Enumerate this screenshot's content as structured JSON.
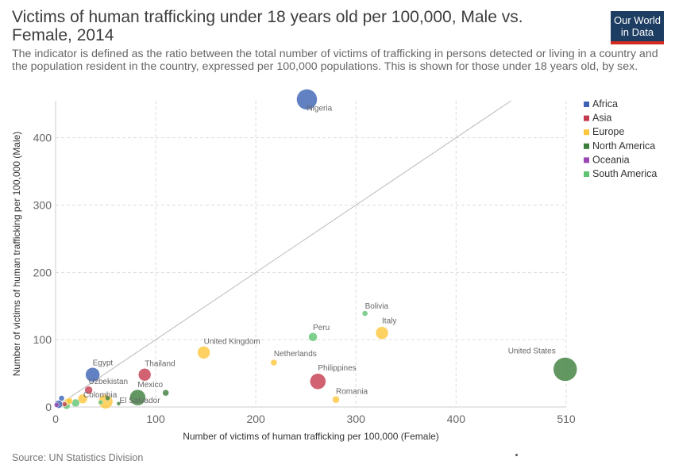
{
  "header": {
    "title": "Victims of human trafficking under 18 years old per 100,000, Male vs. Female, 2014",
    "subtitle": "The indicator is defined as the ratio between the total number of victims of trafficking in persons detected or living in a country and the population resident in the country, expressed per 100,000 populations. This is shown for those under 18 years old, by sex.",
    "logo_line1": "Our World",
    "logo_line2": "in Data"
  },
  "footer": {
    "source": "Source: UN Statistics Division"
  },
  "chart_data": {
    "type": "scatter",
    "xlabel": "Number of victims of human trafficking per 100,000 (Female)",
    "ylabel": "Number of victims of human trafficking per 100,000 (Male)",
    "xlim": [
      0,
      510
    ],
    "ylim": [
      0,
      455
    ],
    "x_ticks": [
      0,
      100,
      200,
      300,
      400,
      510
    ],
    "y_ticks": [
      0,
      100,
      200,
      300,
      400
    ],
    "grid": true,
    "reference_line": "y = x",
    "legend_position": "right",
    "legend": [
      {
        "name": "Africa",
        "color": "#3b62b4"
      },
      {
        "name": "Asia",
        "color": "#c43b4f"
      },
      {
        "name": "Europe",
        "color": "#fcc63b"
      },
      {
        "name": "North America",
        "color": "#3b7d3b"
      },
      {
        "name": "Oceania",
        "color": "#9b47b4"
      },
      {
        "name": "South America",
        "color": "#5fc472"
      }
    ],
    "points": [
      {
        "label": "Nigeria",
        "x": 251,
        "y": 457,
        "region": "Africa",
        "size": 13
      },
      {
        "label": "United States",
        "x": 509,
        "y": 56,
        "region": "North America",
        "size": 15
      },
      {
        "label": "Bolivia",
        "x": 309,
        "y": 139,
        "region": "South America",
        "size": 3.5
      },
      {
        "label": "Italy",
        "x": 326,
        "y": 110,
        "region": "Europe",
        "size": 8
      },
      {
        "label": "Peru",
        "x": 257,
        "y": 104,
        "region": "South America",
        "size": 5.5
      },
      {
        "label": "United Kingdom",
        "x": 148,
        "y": 81,
        "region": "Europe",
        "size": 8
      },
      {
        "label": "Netherlands",
        "x": 218,
        "y": 66,
        "region": "Europe",
        "size": 4
      },
      {
        "label": "Philippines",
        "x": 262,
        "y": 38,
        "region": "Asia",
        "size": 10
      },
      {
        "label": "Romania",
        "x": 280,
        "y": 11,
        "region": "Europe",
        "size": 4.5
      },
      {
        "label": "Thailand",
        "x": 89,
        "y": 48,
        "region": "Asia",
        "size": 8
      },
      {
        "label": "Egypt",
        "x": 37,
        "y": 48,
        "region": "Africa",
        "size": 9
      },
      {
        "label": "Mexico",
        "x": 82,
        "y": 14,
        "region": "North America",
        "size": 10
      },
      {
        "label": "Uzbekistan",
        "x": 33,
        "y": 25,
        "region": "Asia",
        "size": 5
      },
      {
        "label": "Colombia",
        "x": 27,
        "y": 12,
        "region": "Europe",
        "size": 6
      },
      {
        "label": "El Salvador",
        "x": 63,
        "y": 5,
        "region": "North America",
        "size": 2.5
      },
      {
        "label": "",
        "x": 50,
        "y": 8,
        "region": "Europe",
        "size": 9
      },
      {
        "label": "",
        "x": 110,
        "y": 21,
        "region": "North America",
        "size": 4
      },
      {
        "label": "",
        "x": 52,
        "y": 13,
        "region": "North America",
        "size": 3
      },
      {
        "label": "",
        "x": 45,
        "y": 7,
        "region": "South America",
        "size": 3
      },
      {
        "label": "",
        "x": 20,
        "y": 6,
        "region": "South America",
        "size": 5
      },
      {
        "label": "",
        "x": 12,
        "y": 8,
        "region": "Europe",
        "size": 4
      },
      {
        "label": "",
        "x": 9,
        "y": 4,
        "region": "Asia",
        "size": 3
      },
      {
        "label": "",
        "x": 6,
        "y": 13,
        "region": "Africa",
        "size": 3.5
      },
      {
        "label": "",
        "x": 3,
        "y": 4,
        "region": "Africa",
        "size": 5
      },
      {
        "label": "",
        "x": 11,
        "y": 2,
        "region": "South America",
        "size": 4.5
      },
      {
        "label": "",
        "x": 14,
        "y": 9,
        "region": "Europe",
        "size": 4
      },
      {
        "label": "",
        "x": 1,
        "y": 3,
        "region": "Oceania",
        "size": 3
      }
    ]
  }
}
